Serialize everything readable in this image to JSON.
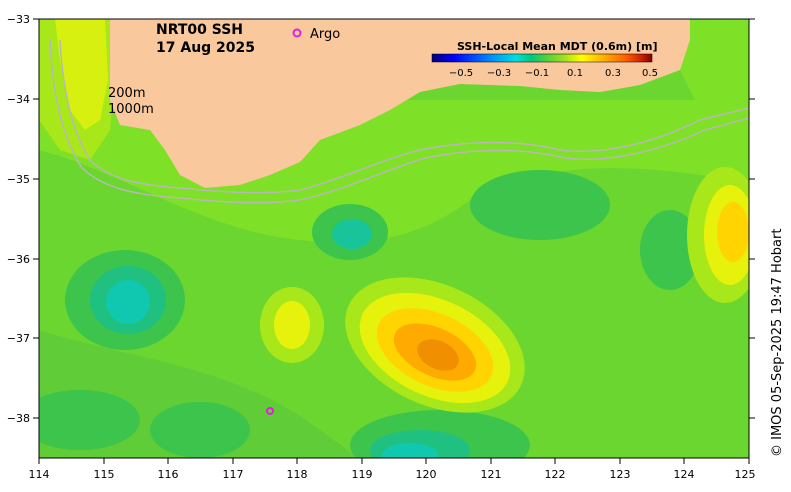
{
  "map": {
    "title_line1": "NRT00 SSH",
    "title_line2": "17 Aug 2025",
    "argo_label": "Argo",
    "contour_labels": [
      "200m",
      "1000m"
    ],
    "credit": "© IMOS 05-Sep-2025 19:47 Hobart",
    "lon_ticks": [
      "114",
      "115",
      "116",
      "117",
      "118",
      "119",
      "120",
      "121",
      "122",
      "123",
      "124",
      "125"
    ],
    "lat_ticks": [
      "−33",
      "−34",
      "−35",
      "−36",
      "−37",
      "−38"
    ],
    "extent": {
      "lon": [
        114,
        125
      ],
      "lat": [
        -38.5,
        -33
      ]
    },
    "land_color": "#f9c89d",
    "argo_color": "#e020e0"
  },
  "legend": {
    "title": "SSH-Local Mean MDT (0.6m) [m]",
    "ticks": [
      "−0.5",
      "−0.3",
      "−0.1",
      "0.1",
      "0.3",
      "0.5"
    ],
    "range": [
      -0.6,
      0.6
    ],
    "colors": [
      "#00007f",
      "#0000ff",
      "#007fff",
      "#00ffff",
      "#00c8a0",
      "#00d060",
      "#40d040",
      "#80e020",
      "#d0f000",
      "#ffff00",
      "#ffc000",
      "#ff8000",
      "#e04000",
      "#c00000",
      "#800000"
    ]
  }
}
